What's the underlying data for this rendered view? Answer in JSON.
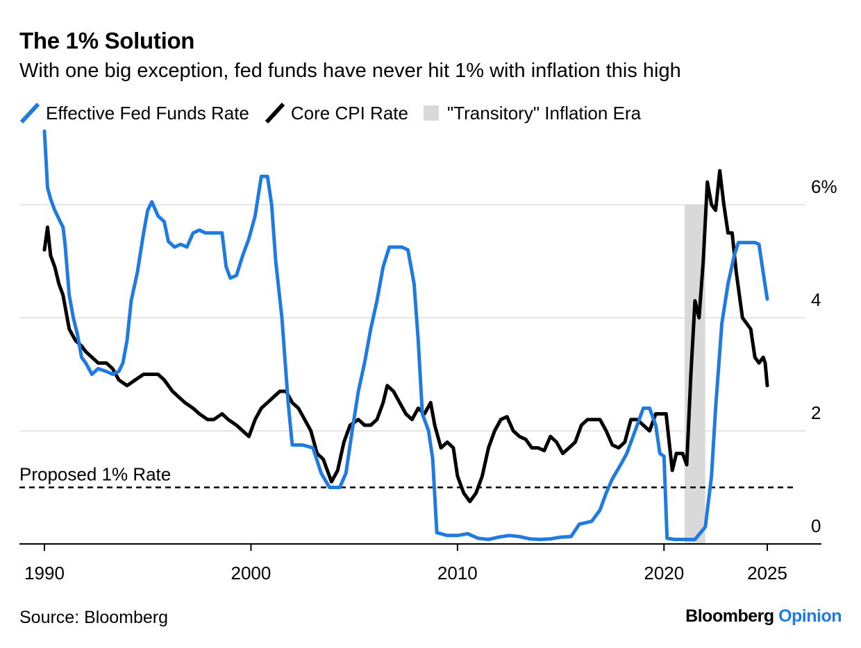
{
  "header": {
    "title": "The 1% Solution",
    "subtitle": "With one big exception, fed funds have never hit 1% with inflation this high"
  },
  "footer": {
    "source": "Source: Bloomberg",
    "brand_part1": "Bloomberg",
    "brand_part2": "Opinion"
  },
  "colors": {
    "fed_funds": "#1f7be0",
    "core_cpi": "#000000",
    "shade": "#d9d9d9",
    "grid": "#e6e6e6"
  },
  "chart_data": {
    "type": "line",
    "title": "The 1% Solution",
    "subtitle": "With one big exception, fed funds have never hit 1% with inflation this high",
    "xlim": [
      1990,
      2025
    ],
    "ylim": [
      0,
      7
    ],
    "x_ticks": [
      {
        "value": 1990,
        "label": "1990"
      },
      {
        "value": 2000,
        "label": "2000"
      },
      {
        "value": 2010,
        "label": "2010"
      },
      {
        "value": 2020,
        "label": "2020"
      },
      {
        "value": 2025,
        "label": "2025"
      }
    ],
    "y_ticks": [
      {
        "value": 0,
        "label": "0"
      },
      {
        "value": 2,
        "label": "2"
      },
      {
        "value": 4,
        "label": "4"
      },
      {
        "value": 6,
        "label": "6%"
      }
    ],
    "grid": true,
    "legend_position": "top-left",
    "reference_line": {
      "value": 1.0,
      "label": "Proposed 1% Rate",
      "style": "dashed"
    },
    "shaded_region": {
      "name": "\"Transitory\" Inflation Era",
      "x_start": 2021.0,
      "x_end": 2022.0,
      "y_top": 6.0
    },
    "series": [
      {
        "name": "Effective Fed Funds Rate",
        "color": "#1f7be0",
        "points": [
          [
            1990.0,
            7.3
          ],
          [
            1990.15,
            6.3
          ],
          [
            1990.3,
            6.1
          ],
          [
            1990.5,
            5.9
          ],
          [
            1990.7,
            5.75
          ],
          [
            1990.9,
            5.6
          ],
          [
            1991.0,
            5.3
          ],
          [
            1991.2,
            4.4
          ],
          [
            1991.4,
            4.0
          ],
          [
            1991.6,
            3.7
          ],
          [
            1991.8,
            3.3
          ],
          [
            1992.0,
            3.2
          ],
          [
            1992.3,
            3.0
          ],
          [
            1992.6,
            3.1
          ],
          [
            1993.0,
            3.05
          ],
          [
            1993.3,
            3.0
          ],
          [
            1993.6,
            3.05
          ],
          [
            1993.8,
            3.2
          ],
          [
            1994.0,
            3.6
          ],
          [
            1994.2,
            4.3
          ],
          [
            1994.5,
            4.8
          ],
          [
            1994.8,
            5.5
          ],
          [
            1995.0,
            5.9
          ],
          [
            1995.2,
            6.05
          ],
          [
            1995.5,
            5.8
          ],
          [
            1995.8,
            5.7
          ],
          [
            1996.0,
            5.35
          ],
          [
            1996.3,
            5.25
          ],
          [
            1996.6,
            5.3
          ],
          [
            1996.9,
            5.25
          ],
          [
            1997.2,
            5.5
          ],
          [
            1997.5,
            5.55
          ],
          [
            1997.8,
            5.5
          ],
          [
            1998.0,
            5.5
          ],
          [
            1998.3,
            5.5
          ],
          [
            1998.6,
            5.5
          ],
          [
            1998.8,
            4.9
          ],
          [
            1999.0,
            4.7
          ],
          [
            1999.3,
            4.75
          ],
          [
            1999.6,
            5.1
          ],
          [
            1999.9,
            5.4
          ],
          [
            2000.2,
            5.8
          ],
          [
            2000.5,
            6.5
          ],
          [
            2000.8,
            6.5
          ],
          [
            2001.0,
            6.0
          ],
          [
            2001.2,
            5.0
          ],
          [
            2001.5,
            4.0
          ],
          [
            2001.8,
            2.5
          ],
          [
            2002.0,
            1.75
          ],
          [
            2002.5,
            1.75
          ],
          [
            2003.0,
            1.7
          ],
          [
            2003.4,
            1.25
          ],
          [
            2003.8,
            1.0
          ],
          [
            2004.0,
            1.0
          ],
          [
            2004.3,
            1.0
          ],
          [
            2004.6,
            1.25
          ],
          [
            2004.9,
            2.0
          ],
          [
            2005.2,
            2.7
          ],
          [
            2005.5,
            3.2
          ],
          [
            2005.8,
            3.8
          ],
          [
            2006.1,
            4.3
          ],
          [
            2006.4,
            4.9
          ],
          [
            2006.7,
            5.25
          ],
          [
            2007.0,
            5.25
          ],
          [
            2007.3,
            5.25
          ],
          [
            2007.6,
            5.2
          ],
          [
            2007.9,
            4.6
          ],
          [
            2008.1,
            3.6
          ],
          [
            2008.3,
            2.3
          ],
          [
            2008.6,
            2.0
          ],
          [
            2008.8,
            1.5
          ],
          [
            2009.0,
            0.2
          ],
          [
            2009.5,
            0.15
          ],
          [
            2010.0,
            0.15
          ],
          [
            2010.5,
            0.18
          ],
          [
            2011.0,
            0.1
          ],
          [
            2011.5,
            0.08
          ],
          [
            2012.0,
            0.12
          ],
          [
            2012.5,
            0.15
          ],
          [
            2013.0,
            0.13
          ],
          [
            2013.5,
            0.09
          ],
          [
            2014.0,
            0.08
          ],
          [
            2014.5,
            0.09
          ],
          [
            2015.0,
            0.12
          ],
          [
            2015.5,
            0.13
          ],
          [
            2015.9,
            0.35
          ],
          [
            2016.5,
            0.4
          ],
          [
            2016.9,
            0.6
          ],
          [
            2017.2,
            0.9
          ],
          [
            2017.5,
            1.15
          ],
          [
            2017.9,
            1.4
          ],
          [
            2018.2,
            1.6
          ],
          [
            2018.5,
            1.9
          ],
          [
            2018.8,
            2.2
          ],
          [
            2019.0,
            2.4
          ],
          [
            2019.3,
            2.4
          ],
          [
            2019.6,
            2.1
          ],
          [
            2019.8,
            1.6
          ],
          [
            2020.0,
            1.55
          ],
          [
            2020.15,
            0.1
          ],
          [
            2020.5,
            0.08
          ],
          [
            2021.0,
            0.08
          ],
          [
            2021.5,
            0.08
          ],
          [
            2022.0,
            0.3
          ],
          [
            2022.3,
            1.2
          ],
          [
            2022.5,
            2.4
          ],
          [
            2022.8,
            3.9
          ],
          [
            2023.1,
            4.6
          ],
          [
            2023.4,
            5.1
          ],
          [
            2023.6,
            5.33
          ],
          [
            2024.0,
            5.33
          ],
          [
            2024.4,
            5.33
          ],
          [
            2024.6,
            5.3
          ],
          [
            2024.8,
            4.8
          ],
          [
            2025.0,
            4.33
          ]
        ]
      },
      {
        "name": "Core CPI Rate",
        "color": "#000000",
        "points": [
          [
            1990.0,
            5.2
          ],
          [
            1990.15,
            5.6
          ],
          [
            1990.3,
            5.1
          ],
          [
            1990.5,
            4.9
          ],
          [
            1990.7,
            4.6
          ],
          [
            1990.9,
            4.4
          ],
          [
            1991.2,
            3.8
          ],
          [
            1991.5,
            3.6
          ],
          [
            1991.8,
            3.5
          ],
          [
            1992.0,
            3.4
          ],
          [
            1992.3,
            3.3
          ],
          [
            1992.6,
            3.2
          ],
          [
            1993.0,
            3.2
          ],
          [
            1993.3,
            3.1
          ],
          [
            1993.6,
            2.9
          ],
          [
            1994.0,
            2.8
          ],
          [
            1994.4,
            2.9
          ],
          [
            1994.8,
            3.0
          ],
          [
            1995.2,
            3.0
          ],
          [
            1995.5,
            3.0
          ],
          [
            1995.8,
            2.9
          ],
          [
            1996.2,
            2.7
          ],
          [
            1996.5,
            2.6
          ],
          [
            1996.8,
            2.5
          ],
          [
            1997.2,
            2.4
          ],
          [
            1997.5,
            2.3
          ],
          [
            1997.9,
            2.2
          ],
          [
            1998.2,
            2.2
          ],
          [
            1998.6,
            2.3
          ],
          [
            1998.9,
            2.2
          ],
          [
            1999.3,
            2.1
          ],
          [
            1999.6,
            2.0
          ],
          [
            1999.9,
            1.9
          ],
          [
            2000.2,
            2.2
          ],
          [
            2000.5,
            2.4
          ],
          [
            2000.8,
            2.5
          ],
          [
            2001.1,
            2.6
          ],
          [
            2001.4,
            2.7
          ],
          [
            2001.7,
            2.7
          ],
          [
            2002.0,
            2.5
          ],
          [
            2002.3,
            2.4
          ],
          [
            2002.6,
            2.2
          ],
          [
            2002.9,
            2.0
          ],
          [
            2003.2,
            1.6
          ],
          [
            2003.5,
            1.5
          ],
          [
            2003.9,
            1.1
          ],
          [
            2004.2,
            1.3
          ],
          [
            2004.5,
            1.8
          ],
          [
            2004.8,
            2.1
          ],
          [
            2005.2,
            2.2
          ],
          [
            2005.5,
            2.1
          ],
          [
            2005.8,
            2.1
          ],
          [
            2006.1,
            2.2
          ],
          [
            2006.4,
            2.5
          ],
          [
            2006.6,
            2.8
          ],
          [
            2006.9,
            2.7
          ],
          [
            2007.2,
            2.5
          ],
          [
            2007.5,
            2.3
          ],
          [
            2007.8,
            2.2
          ],
          [
            2008.1,
            2.4
          ],
          [
            2008.4,
            2.3
          ],
          [
            2008.7,
            2.5
          ],
          [
            2008.9,
            2.1
          ],
          [
            2009.2,
            1.7
          ],
          [
            2009.5,
            1.8
          ],
          [
            2009.8,
            1.7
          ],
          [
            2010.0,
            1.2
          ],
          [
            2010.3,
            0.9
          ],
          [
            2010.6,
            0.75
          ],
          [
            2010.9,
            0.9
          ],
          [
            2011.2,
            1.2
          ],
          [
            2011.5,
            1.7
          ],
          [
            2011.8,
            2.0
          ],
          [
            2012.1,
            2.2
          ],
          [
            2012.4,
            2.25
          ],
          [
            2012.7,
            2.0
          ],
          [
            2013.0,
            1.9
          ],
          [
            2013.3,
            1.85
          ],
          [
            2013.6,
            1.7
          ],
          [
            2013.9,
            1.7
          ],
          [
            2014.2,
            1.65
          ],
          [
            2014.5,
            1.9
          ],
          [
            2014.8,
            1.8
          ],
          [
            2015.1,
            1.6
          ],
          [
            2015.4,
            1.7
          ],
          [
            2015.7,
            1.8
          ],
          [
            2016.0,
            2.1
          ],
          [
            2016.3,
            2.2
          ],
          [
            2016.6,
            2.2
          ],
          [
            2016.9,
            2.2
          ],
          [
            2017.2,
            2.0
          ],
          [
            2017.5,
            1.75
          ],
          [
            2017.8,
            1.7
          ],
          [
            2018.1,
            1.8
          ],
          [
            2018.4,
            2.2
          ],
          [
            2018.7,
            2.2
          ],
          [
            2019.0,
            2.1
          ],
          [
            2019.3,
            2.0
          ],
          [
            2019.6,
            2.3
          ],
          [
            2019.9,
            2.3
          ],
          [
            2020.1,
            2.3
          ],
          [
            2020.4,
            1.3
          ],
          [
            2020.6,
            1.6
          ],
          [
            2020.9,
            1.6
          ],
          [
            2021.1,
            1.4
          ],
          [
            2021.3,
            3.0
          ],
          [
            2021.5,
            4.3
          ],
          [
            2021.7,
            4.0
          ],
          [
            2021.9,
            5.0
          ],
          [
            2022.1,
            6.4
          ],
          [
            2022.3,
            6.0
          ],
          [
            2022.5,
            5.9
          ],
          [
            2022.7,
            6.6
          ],
          [
            2022.9,
            6.0
          ],
          [
            2023.1,
            5.5
          ],
          [
            2023.3,
            5.5
          ],
          [
            2023.5,
            4.8
          ],
          [
            2023.8,
            4.0
          ],
          [
            2024.0,
            3.9
          ],
          [
            2024.2,
            3.8
          ],
          [
            2024.4,
            3.3
          ],
          [
            2024.6,
            3.2
          ],
          [
            2024.8,
            3.3
          ],
          [
            2024.9,
            3.2
          ],
          [
            2025.0,
            2.8
          ]
        ]
      }
    ]
  }
}
